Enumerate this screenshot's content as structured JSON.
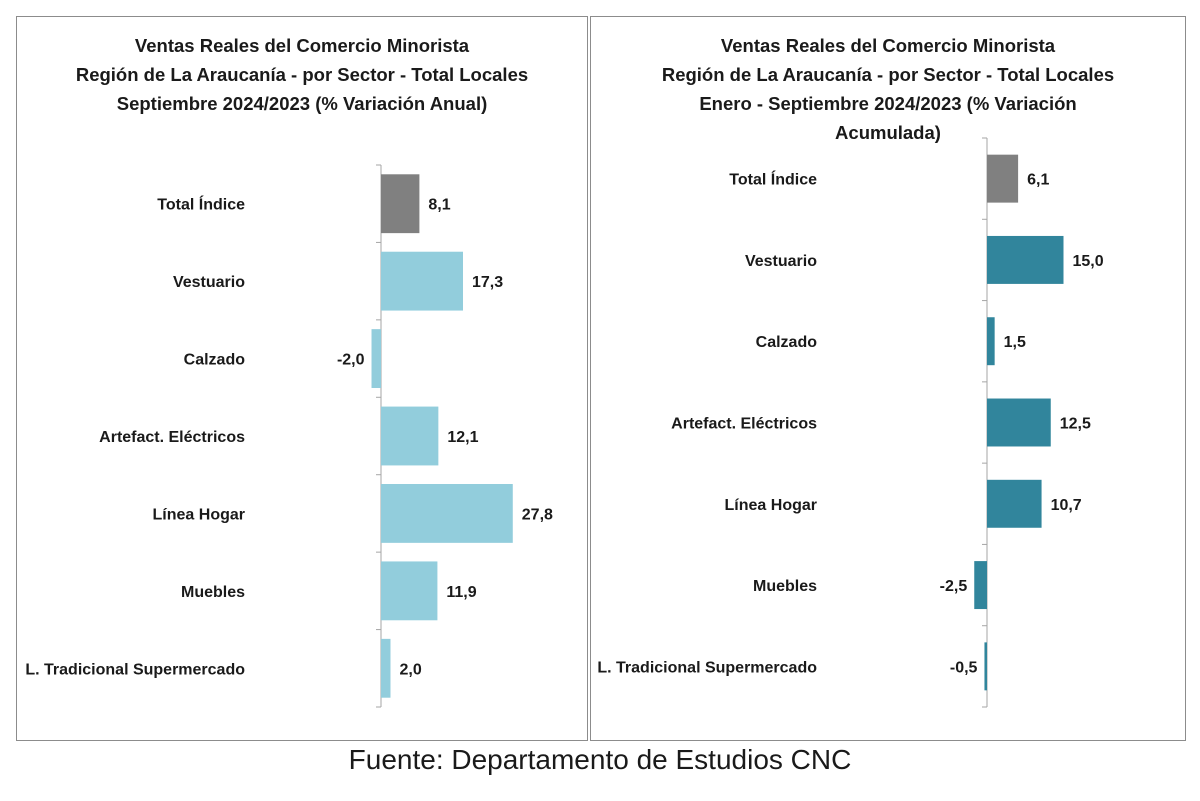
{
  "source": "Fuente: Departamento de Estudios CNC",
  "chart_data": [
    {
      "type": "bar",
      "orientation": "horizontal",
      "title_lines": [
        "Ventas Reales del Comercio Minorista",
        "Región de La Araucanía - por Sector - Total Locales",
        "Septiembre 2024/2023 (% Variación Anual)"
      ],
      "categories": [
        "Total Índice",
        "Vestuario",
        "Calzado",
        "Artefact. Eléctricos",
        "Línea Hogar",
        "Muebles",
        "L. Tradicional Supermercado"
      ],
      "values": [
        8.1,
        17.3,
        -2.0,
        12.1,
        27.8,
        11.9,
        2.0
      ],
      "value_labels": [
        "8,1",
        "17,3",
        "-2,0",
        "12,1",
        "27,8",
        "11,9",
        "2,0"
      ],
      "colors": [
        "#808080",
        "#92cddc",
        "#92cddc",
        "#92cddc",
        "#92cddc",
        "#92cddc",
        "#92cddc"
      ],
      "xlim": [
        -2.0,
        27.8
      ],
      "grid": false,
      "legend": "none"
    },
    {
      "type": "bar",
      "orientation": "horizontal",
      "title_lines": [
        "Ventas Reales del Comercio Minorista",
        "Región de La Araucanía - por Sector - Total Locales",
        "Enero - Septiembre 2024/2023 (% Variación",
        "Acumulada)"
      ],
      "categories": [
        "Total Índice",
        "Vestuario",
        "Calzado",
        "Artefact. Eléctricos",
        "Línea Hogar",
        "Muebles",
        "L. Tradicional Supermercado"
      ],
      "values": [
        6.1,
        15.0,
        1.5,
        12.5,
        10.7,
        -2.5,
        -0.5
      ],
      "value_labels": [
        "6,1",
        "15,0",
        "1,5",
        "12,5",
        "10,7",
        "-2,5",
        "-0,5"
      ],
      "colors": [
        "#808080",
        "#31859c",
        "#31859c",
        "#31859c",
        "#31859c",
        "#31859c",
        "#31859c"
      ],
      "xlim": [
        -2.5,
        15.0
      ],
      "grid": false,
      "legend": "none"
    }
  ]
}
